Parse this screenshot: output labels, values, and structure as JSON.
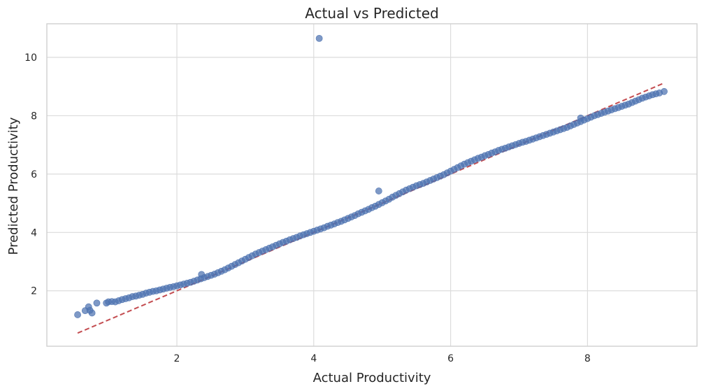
{
  "chart_data": {
    "type": "scatter",
    "title": "Actual vs Predicted",
    "xlabel": "Actual Productivity",
    "ylabel": "Predicted Productivity",
    "xlim": [
      0.1,
      9.6
    ],
    "ylim": [
      0.1,
      11.15
    ],
    "xticks": [
      2,
      4,
      6,
      8
    ],
    "yticks": [
      2,
      4,
      6,
      8,
      10
    ],
    "grid": true,
    "colors": {
      "points": "#4c72b0",
      "reference_line": "#c44e52",
      "grid": "#dcdcdc"
    },
    "reference_line": {
      "from": [
        0.55,
        0.55
      ],
      "to": [
        9.1,
        9.1
      ],
      "style": "dashed"
    },
    "series": [
      {
        "points": [
          [
            0.55,
            1.18
          ],
          [
            0.66,
            1.32
          ],
          [
            0.71,
            1.45
          ],
          [
            0.73,
            1.33
          ],
          [
            0.76,
            1.24
          ],
          [
            0.83,
            1.58
          ],
          [
            0.97,
            1.58
          ],
          [
            1.0,
            1.62
          ],
          [
            1.05,
            1.63
          ],
          [
            1.1,
            1.62
          ],
          [
            1.15,
            1.66
          ],
          [
            1.2,
            1.7
          ],
          [
            1.25,
            1.73
          ],
          [
            1.3,
            1.76
          ],
          [
            1.35,
            1.8
          ],
          [
            1.4,
            1.82
          ],
          [
            1.45,
            1.85
          ],
          [
            1.5,
            1.88
          ],
          [
            1.55,
            1.92
          ],
          [
            1.6,
            1.95
          ],
          [
            1.65,
            1.98
          ],
          [
            1.7,
            2.0
          ],
          [
            1.75,
            2.03
          ],
          [
            1.8,
            2.06
          ],
          [
            1.85,
            2.09
          ],
          [
            1.9,
            2.12
          ],
          [
            1.95,
            2.14
          ],
          [
            2.0,
            2.17
          ],
          [
            2.05,
            2.2
          ],
          [
            2.1,
            2.23
          ],
          [
            2.15,
            2.26
          ],
          [
            2.2,
            2.29
          ],
          [
            2.25,
            2.33
          ],
          [
            2.3,
            2.37
          ],
          [
            2.35,
            2.41
          ],
          [
            2.36,
            2.56
          ],
          [
            2.4,
            2.45
          ],
          [
            2.45,
            2.49
          ],
          [
            2.5,
            2.53
          ],
          [
            2.55,
            2.57
          ],
          [
            2.6,
            2.62
          ],
          [
            2.65,
            2.67
          ],
          [
            2.7,
            2.72
          ],
          [
            2.75,
            2.78
          ],
          [
            2.8,
            2.84
          ],
          [
            2.85,
            2.9
          ],
          [
            2.9,
            2.96
          ],
          [
            2.95,
            3.02
          ],
          [
            3.0,
            3.08
          ],
          [
            3.05,
            3.14
          ],
          [
            3.1,
            3.2
          ],
          [
            3.15,
            3.26
          ],
          [
            3.2,
            3.31
          ],
          [
            3.25,
            3.36
          ],
          [
            3.3,
            3.41
          ],
          [
            3.35,
            3.46
          ],
          [
            3.4,
            3.51
          ],
          [
            3.45,
            3.56
          ],
          [
            3.5,
            3.61
          ],
          [
            3.55,
            3.66
          ],
          [
            3.6,
            3.7
          ],
          [
            3.65,
            3.75
          ],
          [
            3.7,
            3.79
          ],
          [
            3.75,
            3.83
          ],
          [
            3.8,
            3.88
          ],
          [
            3.85,
            3.92
          ],
          [
            3.9,
            3.96
          ],
          [
            3.95,
            4.0
          ],
          [
            4.0,
            4.04
          ],
          [
            4.05,
            4.08
          ],
          [
            4.08,
            10.65
          ],
          [
            4.1,
            4.12
          ],
          [
            4.15,
            4.16
          ],
          [
            4.2,
            4.21
          ],
          [
            4.25,
            4.25
          ],
          [
            4.3,
            4.29
          ],
          [
            4.35,
            4.34
          ],
          [
            4.4,
            4.38
          ],
          [
            4.45,
            4.43
          ],
          [
            4.5,
            4.48
          ],
          [
            4.55,
            4.53
          ],
          [
            4.6,
            4.58
          ],
          [
            4.65,
            4.64
          ],
          [
            4.7,
            4.69
          ],
          [
            4.75,
            4.74
          ],
          [
            4.8,
            4.79
          ],
          [
            4.85,
            4.85
          ],
          [
            4.9,
            4.9
          ],
          [
            4.95,
            4.96
          ],
          [
            4.95,
            5.42
          ],
          [
            5.0,
            5.02
          ],
          [
            5.05,
            5.08
          ],
          [
            5.1,
            5.14
          ],
          [
            5.15,
            5.21
          ],
          [
            5.2,
            5.27
          ],
          [
            5.25,
            5.33
          ],
          [
            5.3,
            5.39
          ],
          [
            5.35,
            5.45
          ],
          [
            5.4,
            5.5
          ],
          [
            5.45,
            5.55
          ],
          [
            5.5,
            5.6
          ],
          [
            5.55,
            5.64
          ],
          [
            5.6,
            5.68
          ],
          [
            5.65,
            5.73
          ],
          [
            5.7,
            5.78
          ],
          [
            5.75,
            5.83
          ],
          [
            5.8,
            5.88
          ],
          [
            5.85,
            5.93
          ],
          [
            5.9,
            5.98
          ],
          [
            5.95,
            6.04
          ],
          [
            6.0,
            6.1
          ],
          [
            6.05,
            6.16
          ],
          [
            6.1,
            6.22
          ],
          [
            6.15,
            6.28
          ],
          [
            6.2,
            6.34
          ],
          [
            6.25,
            6.39
          ],
          [
            6.3,
            6.44
          ],
          [
            6.35,
            6.49
          ],
          [
            6.4,
            6.54
          ],
          [
            6.45,
            6.58
          ],
          [
            6.5,
            6.63
          ],
          [
            6.55,
            6.67
          ],
          [
            6.6,
            6.72
          ],
          [
            6.65,
            6.76
          ],
          [
            6.7,
            6.81
          ],
          [
            6.75,
            6.85
          ],
          [
            6.8,
            6.89
          ],
          [
            6.85,
            6.93
          ],
          [
            6.9,
            6.97
          ],
          [
            6.95,
            7.01
          ],
          [
            7.0,
            7.05
          ],
          [
            7.05,
            7.09
          ],
          [
            7.1,
            7.12
          ],
          [
            7.15,
            7.16
          ],
          [
            7.2,
            7.2
          ],
          [
            7.25,
            7.24
          ],
          [
            7.3,
            7.28
          ],
          [
            7.35,
            7.32
          ],
          [
            7.4,
            7.36
          ],
          [
            7.45,
            7.4
          ],
          [
            7.5,
            7.44
          ],
          [
            7.55,
            7.48
          ],
          [
            7.6,
            7.52
          ],
          [
            7.65,
            7.56
          ],
          [
            7.7,
            7.6
          ],
          [
            7.75,
            7.65
          ],
          [
            7.8,
            7.7
          ],
          [
            7.85,
            7.75
          ],
          [
            7.9,
            7.8
          ],
          [
            7.95,
            7.85
          ],
          [
            7.9,
            7.92
          ],
          [
            8.0,
            7.9
          ],
          [
            8.05,
            7.95
          ],
          [
            8.1,
            8.0
          ],
          [
            8.15,
            8.04
          ],
          [
            8.2,
            8.08
          ],
          [
            8.25,
            8.12
          ],
          [
            8.3,
            8.16
          ],
          [
            8.35,
            8.2
          ],
          [
            8.4,
            8.24
          ],
          [
            8.45,
            8.28
          ],
          [
            8.5,
            8.32
          ],
          [
            8.55,
            8.36
          ],
          [
            8.6,
            8.4
          ],
          [
            8.65,
            8.45
          ],
          [
            8.7,
            8.5
          ],
          [
            8.75,
            8.55
          ],
          [
            8.8,
            8.6
          ],
          [
            8.85,
            8.64
          ],
          [
            8.9,
            8.68
          ],
          [
            8.95,
            8.72
          ],
          [
            9.0,
            8.75
          ],
          [
            9.05,
            8.78
          ],
          [
            9.12,
            8.83
          ]
        ]
      }
    ]
  }
}
